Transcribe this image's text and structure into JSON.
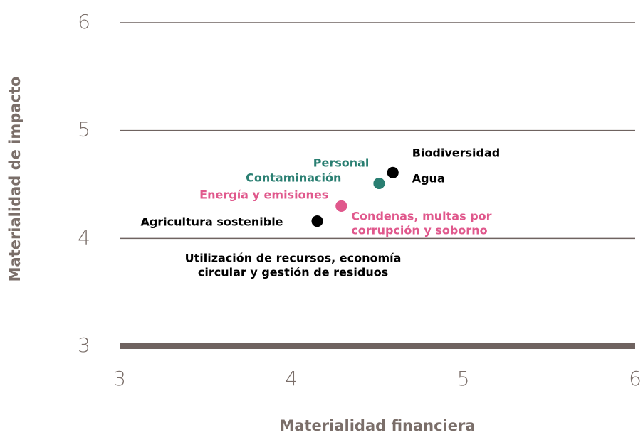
{
  "chart_data": {
    "type": "scatter",
    "xlabel": "Materialidad financiera",
    "ylabel": "Materialidad de impacto",
    "xlim": [
      3,
      6
    ],
    "xticks": [
      3,
      4,
      5,
      6
    ],
    "ylim": [
      3,
      6
    ],
    "yticks": [
      3,
      4,
      5,
      6
    ],
    "grid": true,
    "points": [
      {
        "label": [
          "Agricultura sostenible"
        ],
        "x": 4.15,
        "y": 4.16,
        "color": "#000000"
      },
      {
        "label": [
          "Utilización de recursos, economía",
          "circular y gestión de residuos"
        ],
        "x": 4.15,
        "y": 4.16,
        "color": "#000000"
      },
      {
        "label": [
          "Energía y emisiones"
        ],
        "x": 4.29,
        "y": 4.3,
        "color": "#e0588c"
      },
      {
        "label": [
          "Condenas, multas por",
          "corrupción y soborno"
        ],
        "x": 4.29,
        "y": 4.3,
        "color": "#e0588c"
      },
      {
        "label": [
          "Personal"
        ],
        "x": 4.51,
        "y": 4.51,
        "color": "#2a7f72"
      },
      {
        "label": [
          "Contaminación"
        ],
        "x": 4.51,
        "y": 4.51,
        "color": "#2a7f72"
      },
      {
        "label": [
          "Biodiversidad"
        ],
        "x": 4.59,
        "y": 4.61,
        "color": "#000000"
      },
      {
        "label": [
          "Agua"
        ],
        "x": 4.59,
        "y": 4.61,
        "color": "#000000"
      }
    ]
  }
}
